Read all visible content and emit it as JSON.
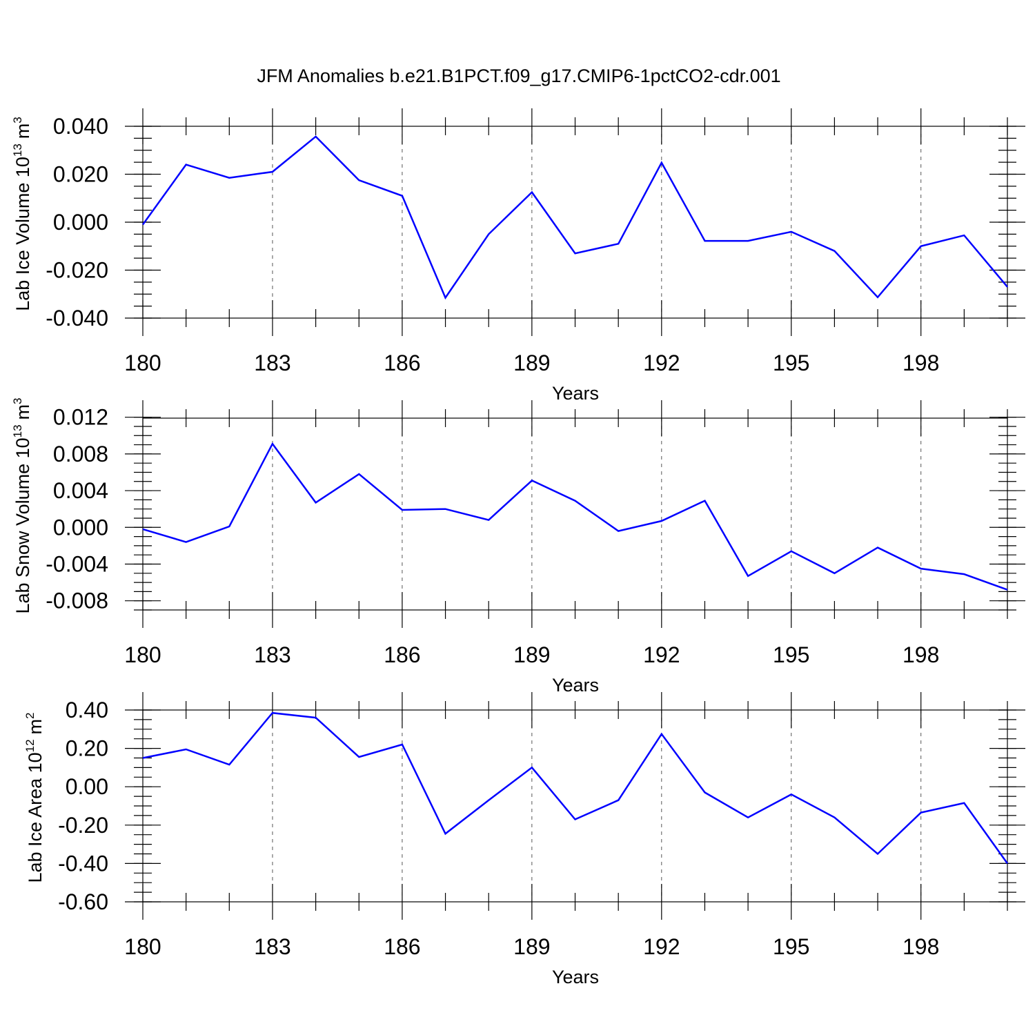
{
  "title": "JFM Anomalies b.e21.B1PCT.f09_g17.CMIP6-1pctCO2-cdr.001",
  "chart_data": [
    {
      "type": "line",
      "title": "JFM Anomalies b.e21.B1PCT.f09_g17.CMIP6-1pctCO2-cdr.001",
      "ylabel": "Lab Ice Volume 10",
      "ylabel_exp": "13",
      "ylabel_unit": "m",
      "ylabel_unit_exp": "3",
      "xlabel": "Years",
      "x": [
        180,
        181,
        182,
        183,
        184,
        185,
        186,
        187,
        188,
        189,
        190,
        191,
        192,
        193,
        194,
        195,
        196,
        197,
        198,
        199,
        200
      ],
      "values": [
        -0.001,
        0.024,
        0.0185,
        0.021,
        0.0357,
        0.0175,
        0.011,
        -0.0315,
        -0.005,
        0.0125,
        -0.013,
        -0.009,
        0.0248,
        -0.0078,
        -0.0078,
        -0.004,
        -0.012,
        -0.0313,
        -0.01,
        -0.0055,
        -0.027
      ],
      "xlim": [
        180,
        200
      ],
      "ylim": [
        -0.04,
        0.04
      ],
      "xticks": [
        180,
        183,
        186,
        189,
        192,
        195,
        198
      ],
      "xtick_labels": [
        "180",
        "183",
        "186",
        "189",
        "192",
        "195",
        "198"
      ],
      "yticks": [
        -0.04,
        -0.02,
        0,
        0.02,
        0.04
      ],
      "ytick_labels": [
        "-0.040",
        "-0.020",
        "0.000",
        "0.020",
        "0.040"
      ],
      "y_minor_step": 0.005,
      "grid": "vertical-dashed at major x ticks",
      "color": "#0000ff"
    },
    {
      "type": "line",
      "ylabel": "Lab Snow Volume 10",
      "ylabel_exp": "13",
      "ylabel_unit": "m",
      "ylabel_unit_exp": "3",
      "xlabel": "Years",
      "x": [
        180,
        181,
        182,
        183,
        184,
        185,
        186,
        187,
        188,
        189,
        190,
        191,
        192,
        193,
        194,
        195,
        196,
        197,
        198,
        199,
        200
      ],
      "values": [
        -0.0002,
        -0.0016,
        0.0001,
        0.0091,
        0.0027,
        0.0058,
        0.0019,
        0.002,
        0.0008,
        0.0051,
        0.0029,
        -0.0004,
        0.0007,
        0.0029,
        -0.0053,
        -0.0026,
        -0.005,
        -0.0022,
        -0.0045,
        -0.0051,
        -0.0068
      ],
      "xlim": [
        180,
        200
      ],
      "ylim": [
        -0.009,
        0.0119
      ],
      "xticks": [
        180,
        183,
        186,
        189,
        192,
        195,
        198
      ],
      "xtick_labels": [
        "180",
        "183",
        "186",
        "189",
        "192",
        "195",
        "198"
      ],
      "yticks": [
        -0.008,
        -0.004,
        0,
        0.004,
        0.008,
        0.012
      ],
      "ytick_labels": [
        "-0.008",
        "-0.004",
        "0.000",
        "0.004",
        "0.008",
        "0.012"
      ],
      "y_minor_step": 0.001,
      "grid": "vertical-dashed at major x ticks",
      "color": "#0000ff"
    },
    {
      "type": "line",
      "ylabel": "Lab Ice Area 10",
      "ylabel_exp": "12",
      "ylabel_unit": "m",
      "ylabel_unit_exp": "2",
      "xlabel": "Years",
      "x": [
        180,
        181,
        182,
        183,
        184,
        185,
        186,
        187,
        188,
        189,
        190,
        191,
        192,
        193,
        194,
        195,
        196,
        197,
        198,
        199,
        200
      ],
      "values": [
        0.15,
        0.195,
        0.115,
        0.385,
        0.36,
        0.155,
        0.22,
        -0.245,
        -0.07,
        0.1,
        -0.17,
        -0.07,
        0.275,
        -0.03,
        -0.16,
        -0.04,
        -0.16,
        -0.35,
        -0.135,
        -0.085,
        -0.4
      ],
      "xlim": [
        180,
        200
      ],
      "ylim": [
        -0.6,
        0.4
      ],
      "xticks": [
        180,
        183,
        186,
        189,
        192,
        195,
        198
      ],
      "xtick_labels": [
        "180",
        "183",
        "186",
        "189",
        "192",
        "195",
        "198"
      ],
      "yticks": [
        -0.6,
        -0.4,
        -0.2,
        0,
        0.2,
        0.4
      ],
      "ytick_labels": [
        "-0.60",
        "-0.40",
        "-0.20",
        "0.00",
        "0.20",
        "0.40"
      ],
      "y_minor_step": 0.05,
      "grid": "vertical-dashed at major x ticks",
      "color": "#0000ff"
    }
  ]
}
